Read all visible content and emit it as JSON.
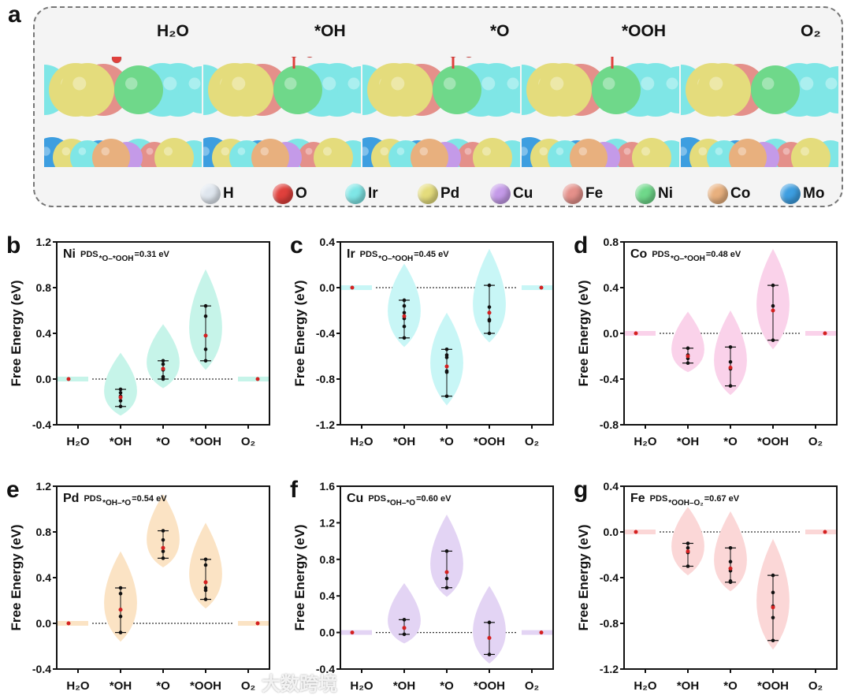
{
  "panel_a": {
    "label": "a",
    "states": [
      "H₂O",
      "*OH",
      "*O",
      "*OOH",
      "O₂"
    ],
    "legend": [
      {
        "el": "H",
        "color": "#dfe6ee"
      },
      {
        "el": "O",
        "color": "#e0403c"
      },
      {
        "el": "Ir",
        "color": "#7fe6e6"
      },
      {
        "el": "Pd",
        "color": "#e4dc7c"
      },
      {
        "el": "Cu",
        "color": "#c49ae8"
      },
      {
        "el": "Fe",
        "color": "#e4908a"
      },
      {
        "el": "Ni",
        "color": "#6fd88a"
      },
      {
        "el": "Co",
        "color": "#e8b07e"
      },
      {
        "el": "Mo",
        "color": "#3d9ee0"
      }
    ]
  },
  "watermark": "大数跨境",
  "chart_data": [
    {
      "panel": "b",
      "type": "violin",
      "metal": "Ni",
      "pds": "PDS",
      "pds_sub": "*O–*OOH",
      "pds_val": "=0.31 eV",
      "color": "#c6f4e9",
      "categories": [
        "H₂O",
        "*OH",
        "*O",
        "*OOH",
        "O₂"
      ],
      "ylabel": "Free Energy (eV)",
      "ylim": [
        -0.4,
        1.2
      ],
      "yticks": [
        "-0.4",
        "0.0",
        "0.4",
        "0.8",
        "1.2"
      ],
      "series": [
        {
          "points": [
            0
          ],
          "mean": 0
        },
        {
          "points": [
            -0.09,
            -0.12,
            -0.15,
            -0.19,
            -0.24
          ],
          "mean": -0.16
        },
        {
          "points": [
            0.16,
            0.13,
            0.09,
            0.08,
            0.02,
            0.0
          ],
          "mean": 0.09
        },
        {
          "points": [
            0.64,
            0.55,
            0.38,
            0.26,
            0.16
          ],
          "mean": 0.38
        },
        {
          "points": [
            0
          ],
          "mean": 0
        }
      ]
    },
    {
      "panel": "c",
      "type": "violin",
      "metal": "Ir",
      "pds": "PDS",
      "pds_sub": "*O–*OOH",
      "pds_val": "=0.45 eV",
      "color": "#c8f6f6",
      "categories": [
        "H₂O",
        "*OH",
        "*O",
        "*OOH",
        "O₂"
      ],
      "ylabel": "Free Energy (eV)",
      "ylim": [
        -1.2,
        0.4
      ],
      "yticks": [
        "-1.2",
        "-0.8",
        "-0.4",
        "0.0",
        "0.4"
      ],
      "series": [
        {
          "points": [
            0
          ],
          "mean": 0
        },
        {
          "points": [
            -0.11,
            -0.16,
            -0.22,
            -0.27,
            -0.34,
            -0.44
          ],
          "mean": -0.25
        },
        {
          "points": [
            -0.54,
            -0.59,
            -0.61,
            -0.73,
            -0.74,
            -0.95
          ],
          "mean": -0.69
        },
        {
          "points": [
            0.02,
            -0.17,
            -0.22,
            -0.28,
            -0.29,
            -0.4
          ],
          "mean": -0.22
        },
        {
          "points": [
            0
          ],
          "mean": 0
        }
      ]
    },
    {
      "panel": "d",
      "type": "violin",
      "metal": "Co",
      "pds": "PDS",
      "pds_sub": "*O–*OOH",
      "pds_val": "=0.48 eV",
      "color": "#fad2ea",
      "categories": [
        "H₂O",
        "*OH",
        "*O",
        "*OOH",
        "O₂"
      ],
      "ylabel": "Free Energy (eV)",
      "ylim": [
        -0.8,
        0.8
      ],
      "yticks": [
        "-0.8",
        "-0.4",
        "0.0",
        "0.4",
        "0.8"
      ],
      "series": [
        {
          "points": [
            0
          ],
          "mean": 0
        },
        {
          "points": [
            -0.13,
            -0.19,
            -0.22,
            -0.26
          ],
          "mean": -0.2
        },
        {
          "points": [
            -0.12,
            -0.25,
            -0.31,
            -0.46
          ],
          "mean": -0.3
        },
        {
          "points": [
            0.42,
            0.24,
            0.2,
            -0.06
          ],
          "mean": 0.2
        },
        {
          "points": [
            0
          ],
          "mean": 0
        }
      ]
    },
    {
      "panel": "e",
      "type": "violin",
      "metal": "Pd",
      "pds": "PDS",
      "pds_sub": "*OH–*O",
      "pds_val": "=0.54 eV",
      "color": "#fbe3c4",
      "categories": [
        "H₂O",
        "*OH",
        "*O",
        "*OOH",
        "O₂"
      ],
      "ylabel": "Free Energy (eV)",
      "ylim": [
        -0.4,
        1.2
      ],
      "yticks": [
        "-0.4",
        "0.0",
        "0.4",
        "0.8",
        "1.2"
      ],
      "series": [
        {
          "points": [
            0
          ],
          "mean": 0
        },
        {
          "points": [
            0.31,
            0.26,
            0.12,
            0.06,
            -0.08
          ],
          "mean": 0.12
        },
        {
          "points": [
            0.81,
            0.73,
            0.66,
            0.63,
            0.57
          ],
          "mean": 0.66
        },
        {
          "points": [
            0.56,
            0.51,
            0.36,
            0.31,
            0.29,
            0.21
          ],
          "mean": 0.36
        },
        {
          "points": [
            0
          ],
          "mean": 0
        }
      ]
    },
    {
      "panel": "f",
      "type": "violin",
      "metal": "Cu",
      "pds": "PDS",
      "pds_sub": "*OH–*O",
      "pds_val": "=0.60 eV",
      "color": "#e3d4f4",
      "categories": [
        "H₂O",
        "*OH",
        "*O",
        "*OOH",
        "O₂"
      ],
      "ylabel": "Free Energy (eV)",
      "ylim": [
        -0.4,
        1.6
      ],
      "yticks": [
        "-0.4",
        "0.0",
        "0.4",
        "0.8",
        "1.2",
        "1.6"
      ],
      "series": [
        {
          "points": [
            0
          ],
          "mean": 0
        },
        {
          "points": [
            0.14,
            0.05,
            -0.02
          ],
          "mean": 0.05
        },
        {
          "points": [
            0.89,
            0.59,
            0.49
          ],
          "mean": 0.66
        },
        {
          "points": [
            0.11,
            -0.06,
            -0.24
          ],
          "mean": -0.06
        },
        {
          "points": [
            0
          ],
          "mean": 0
        }
      ]
    },
    {
      "panel": "g",
      "type": "violin",
      "metal": "Fe",
      "pds": "PDS",
      "pds_sub": "*OOH–O₂",
      "pds_val": "=0.67 eV",
      "color": "#fbd7d7",
      "categories": [
        "H₂O",
        "*OH",
        "*O",
        "*OOH",
        "O₂"
      ],
      "ylabel": "Free Energy (eV)",
      "ylim": [
        -1.2,
        0.4
      ],
      "yticks": [
        "-1.2",
        "-0.8",
        "-0.4",
        "0.0",
        "0.4"
      ],
      "series": [
        {
          "points": [
            0
          ],
          "mean": 0
        },
        {
          "points": [
            -0.1,
            -0.14,
            -0.18,
            -0.3
          ],
          "mean": -0.17
        },
        {
          "points": [
            -0.14,
            -0.26,
            -0.32,
            -0.34,
            -0.43,
            -0.44
          ],
          "mean": -0.32
        },
        {
          "points": [
            -0.38,
            -0.53,
            -0.65,
            -0.75,
            -0.95
          ],
          "mean": -0.66
        },
        {
          "points": [
            0
          ],
          "mean": 0
        }
      ]
    }
  ]
}
